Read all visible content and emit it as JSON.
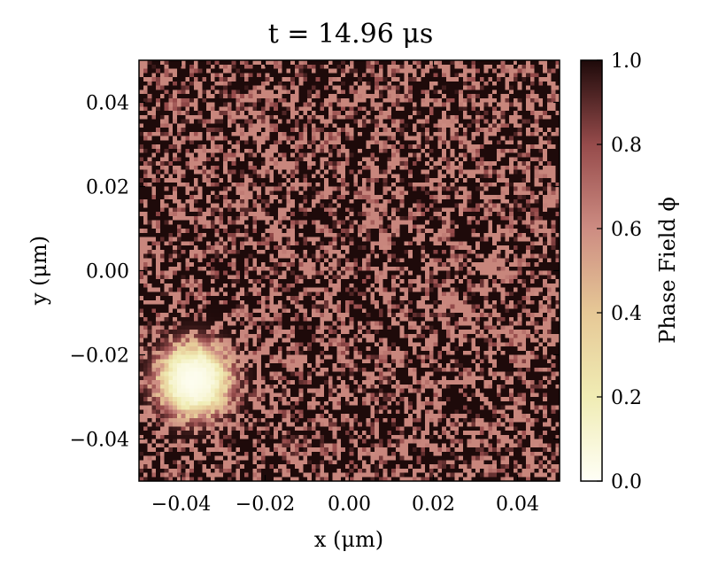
{
  "chart_data": {
    "type": "heatmap",
    "title": "t = 14.96 μs",
    "xlabel": "x (μm)",
    "ylabel": "y (μm)",
    "xlim": [
      -0.05,
      0.05
    ],
    "ylim": [
      -0.05,
      0.05
    ],
    "xticks": [
      "−0.04",
      "−0.02",
      "0.00",
      "0.02",
      "0.04"
    ],
    "xtick_values": [
      -0.04,
      -0.02,
      0.0,
      0.02,
      0.04
    ],
    "yticks": [
      "0.04",
      "0.02",
      "0.00",
      "−0.02",
      "−0.04"
    ],
    "ytick_values": [
      0.04,
      0.02,
      0.0,
      -0.02,
      -0.04
    ],
    "colorbar": {
      "label": "Phase Field ϕ",
      "range": [
        0.0,
        1.0
      ],
      "ticks": [
        "1.0",
        "0.8",
        "0.6",
        "0.4",
        "0.2",
        "0.0"
      ],
      "tick_values": [
        1.0,
        0.8,
        0.6,
        0.4,
        0.2,
        0.0
      ],
      "colormap": "pink_r",
      "color_stops": [
        "#fffff6",
        "#f0ecb4",
        "#e6c896",
        "#cd8c82",
        "#964b4b",
        "#1e0a0a"
      ]
    },
    "grid": false,
    "field_summary": {
      "background_value_range": [
        0.6,
        1.0
      ],
      "droplet": {
        "center": [
          -0.037,
          -0.026
        ],
        "radius": 0.008,
        "value": 0.02
      }
    }
  }
}
